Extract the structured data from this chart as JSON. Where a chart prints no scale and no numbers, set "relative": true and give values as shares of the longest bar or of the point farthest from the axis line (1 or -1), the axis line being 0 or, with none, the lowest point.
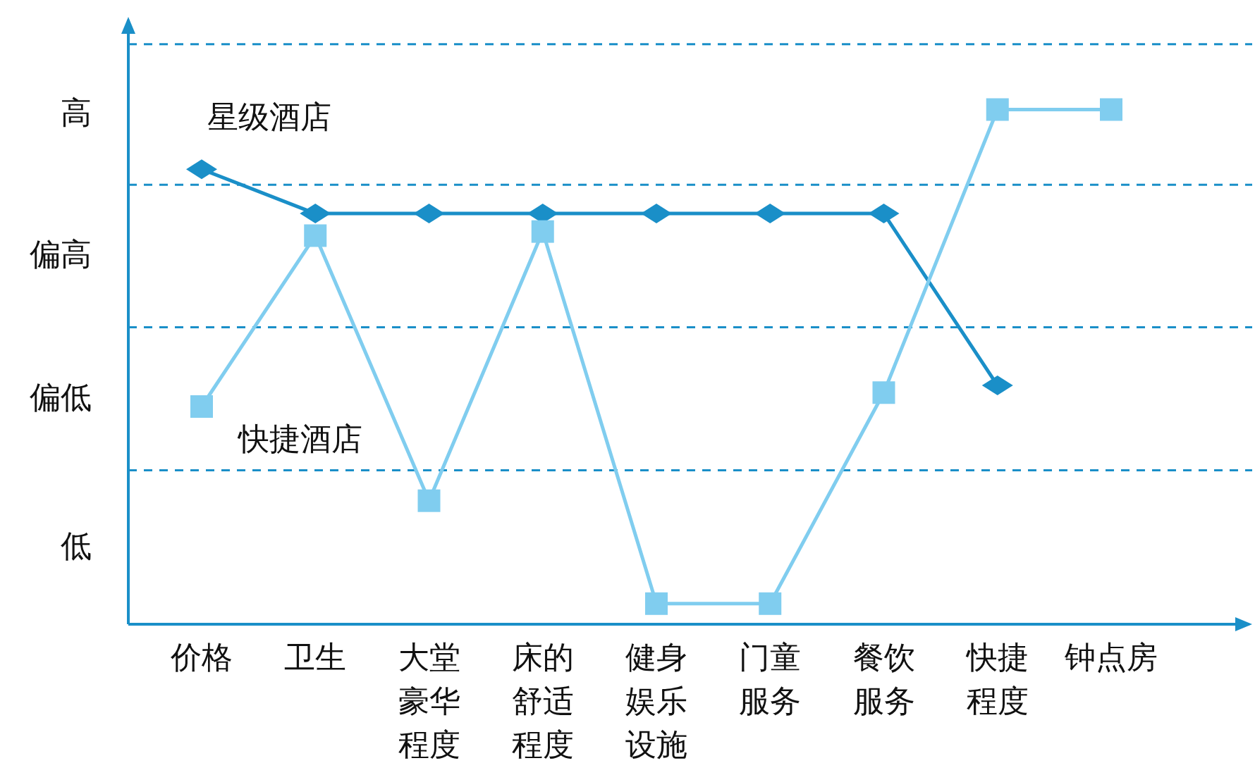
{
  "chart_data": {
    "type": "line",
    "relative": true,
    "categories": [
      "价格",
      "卫生",
      "大堂豪华程度",
      "床的舒适程度",
      "健身娱乐设施",
      "门童服务",
      "餐饮服务",
      "快捷程度",
      "钟点房"
    ],
    "series": [
      {
        "name": "星级酒店",
        "color": "#1a8fc8",
        "marker": "diamond",
        "values": [
          0.884,
          0.798,
          0.798,
          0.798,
          0.798,
          0.798,
          0.798,
          0.464,
          null
        ]
      },
      {
        "name": "快捷酒店",
        "color": "#80cdef",
        "marker": "square",
        "values": [
          0.423,
          0.755,
          0.24,
          0.763,
          0.04,
          0.04,
          0.45,
          1,
          1
        ]
      }
    ],
    "annotations": [
      "低",
      "偏低",
      "偏高",
      "高"
    ],
    "ref_lines": [
      {
        "axis": "y",
        "value": 0.299,
        "line_style": "dashed",
        "color": "#1a8fc8"
      },
      {
        "axis": "y",
        "value": 0.577,
        "line_style": "dashed",
        "color": "#1a8fc8"
      },
      {
        "axis": "y",
        "value": 0.854,
        "line_style": "dashed",
        "color": "#1a8fc8"
      },
      {
        "axis": "y",
        "value": 1.127,
        "line_style": "dashed",
        "color": "#1a8fc8"
      }
    ]
  }
}
